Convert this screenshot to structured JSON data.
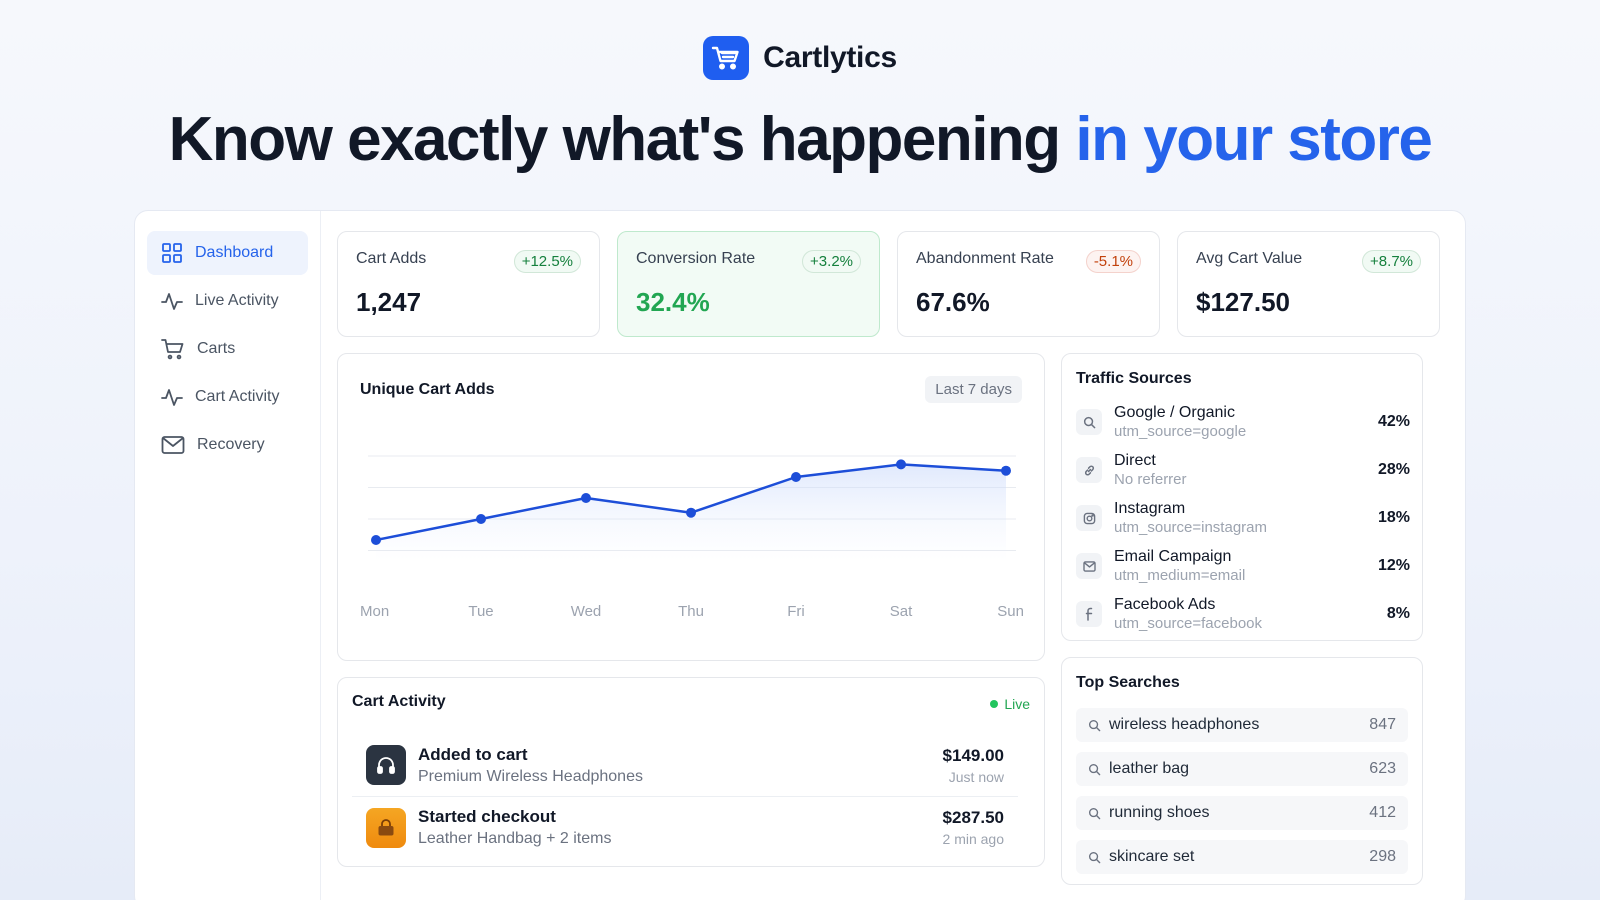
{
  "brand": {
    "name": "Cartlytics",
    "icon": "shopping-cart-icon",
    "color": "#1f5ef0"
  },
  "headline": {
    "main": "Know exactly what's happening ",
    "accent": "in your store",
    "accent_color": "#2563eb"
  },
  "sidebar": {
    "items": [
      {
        "label": "Dashboard",
        "icon": "grid-icon",
        "active": true
      },
      {
        "label": "Live Activity",
        "icon": "pulse-icon"
      },
      {
        "label": "Carts",
        "icon": "cart-icon"
      },
      {
        "label": "Cart Activity",
        "icon": "pulse-icon"
      },
      {
        "label": "Recovery",
        "icon": "mail-icon"
      }
    ]
  },
  "stats": [
    {
      "label": "Cart Adds",
      "badge": "+12.5%",
      "value": "1,247"
    },
    {
      "label": "Conversion Rate",
      "badge": "+3.2%",
      "value": "32.4%"
    },
    {
      "label": "Abandonment Rate",
      "badge": "-5.1%",
      "value": "67.6%"
    },
    {
      "label": "Avg Cart Value",
      "badge": "+8.7%",
      "value": "$127.50"
    }
  ],
  "chart_panel": {
    "title": "Unique Cart Adds",
    "range": "Last 7 days"
  },
  "chart_data": {
    "type": "line",
    "title": "Unique Cart Adds",
    "categories": [
      "Mon",
      "Tue",
      "Wed",
      "Thu",
      "Fri",
      "Sat",
      "Sun"
    ],
    "values": [
      40,
      50,
      60,
      53,
      70,
      76,
      73
    ],
    "ylim": [
      0,
      100
    ],
    "grid": true,
    "color": "#1d4ed8"
  },
  "traffic": {
    "title": "Traffic Sources",
    "rows": [
      {
        "name": "Google / Organic",
        "sub": "utm_source=google",
        "pct": "42%",
        "icon": "search-icon"
      },
      {
        "name": "Direct",
        "sub": "No referrer",
        "pct": "28%",
        "icon": "link-icon"
      },
      {
        "name": "Instagram",
        "sub": "utm_source=instagram",
        "pct": "18%",
        "icon": "instagram-icon"
      },
      {
        "name": "Email Campaign",
        "sub": "utm_medium=email",
        "pct": "12%",
        "icon": "mail-icon"
      },
      {
        "name": "Facebook Ads",
        "sub": "utm_source=facebook",
        "pct": "8%",
        "icon": "facebook-icon"
      }
    ]
  },
  "searches": {
    "title": "Top Searches",
    "rows": [
      {
        "q": "wireless headphones",
        "n": "847"
      },
      {
        "q": "leather bag",
        "n": "623"
      },
      {
        "q": "running shoes",
        "n": "412"
      },
      {
        "q": "skincare set",
        "n": "298"
      }
    ]
  },
  "activity": {
    "title": "Cart Activity",
    "live": "Live",
    "rows": [
      {
        "title": "Added to cart",
        "sub": "Premium Wireless Headphones",
        "amount": "$149.00",
        "time": "Just now",
        "icon": "headphones-icon"
      },
      {
        "title": "Started checkout",
        "sub": "Leather Handbag + 2 items",
        "amount": "$287.50",
        "time": "2 min ago",
        "icon": "handbag-icon"
      }
    ]
  }
}
